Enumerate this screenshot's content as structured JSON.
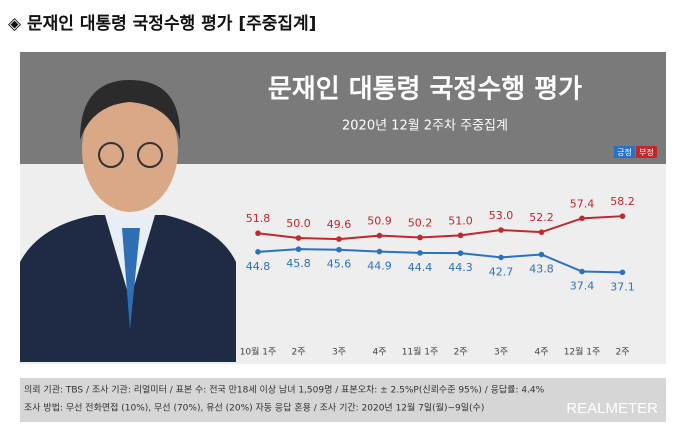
{
  "header": {
    "title": "◈ 문재인 대통령 국정수행 평가 [주중집계]"
  },
  "chart_data": {
    "type": "line",
    "title": "문재인 대통령 국정수행 평가",
    "subtitle": "2020년 12월 2주차 주중집계",
    "categories": [
      "10월 1주",
      "2주",
      "3주",
      "4주",
      "11월 1주",
      "2주",
      "3주",
      "4주",
      "12월 1주",
      "2주"
    ],
    "series": [
      {
        "name": "긍정",
        "color": "#2b71c1",
        "values": [
          44.8,
          45.8,
          45.6,
          44.9,
          44.4,
          44.3,
          42.7,
          43.8,
          37.4,
          37.1
        ],
        "value_labels": [
          "44.8",
          "45.8",
          "45.6",
          "44.9",
          "44.4",
          "44.3",
          "42.7",
          "43.8",
          "37.4",
          "37.1"
        ]
      },
      {
        "name": "부정",
        "color": "#c1272d",
        "values": [
          51.8,
          50.0,
          49.6,
          50.9,
          50.2,
          51.0,
          53.0,
          52.2,
          57.4,
          58.2
        ],
        "value_labels": [
          "51.8",
          "50.0",
          "49.6",
          "50.9",
          "50.2",
          "51.0",
          "53.0",
          "52.2",
          "57.4",
          "58.2"
        ]
      }
    ]
  },
  "footer": {
    "lines": [
      "의뢰 기관: TBS / 조사 기관: 리얼미터 / 표본 수: 전국 만18세 이상 남녀 1,509명 / 표본오차: ± 2.5%P(신뢰수준 95%) / 응답률: 4.4%",
      "조사 방법: 무선 전화면접 (10%), 무선 (70%), 유선 (20%)  자동 응답 혼용 / 조사 기간: 2020년 12월 7일(월)~9일(수)"
    ],
    "logo": "REALMETER"
  }
}
